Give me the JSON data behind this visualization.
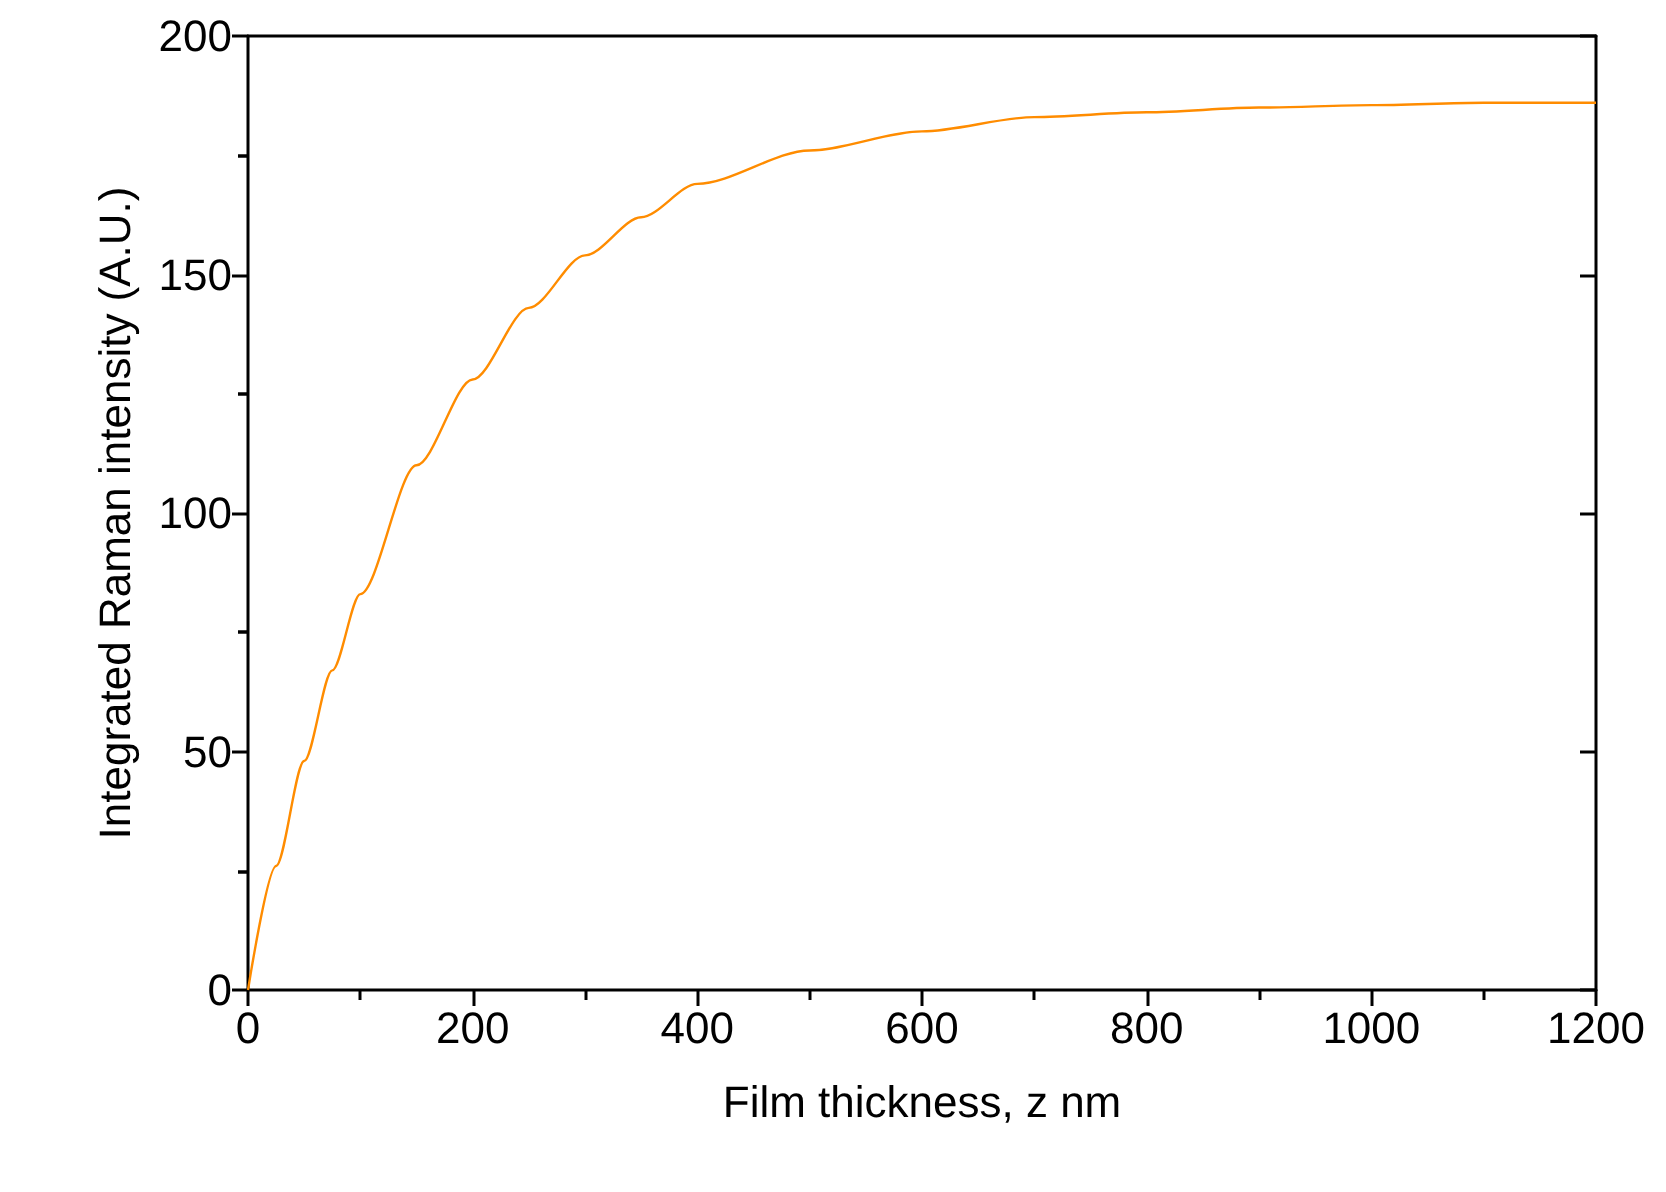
{
  "chart_data": {
    "type": "line",
    "xlabel": "Film thickness, z nm",
    "ylabel": "Integrated Raman intensity (A.U.)",
    "x": [
      0,
      25,
      50,
      75,
      100,
      150,
      200,
      250,
      300,
      350,
      400,
      500,
      600,
      700,
      800,
      900,
      1000,
      1100,
      1200
    ],
    "series": [
      {
        "color": "#ff8c00",
        "values": [
          0,
          26,
          48,
          67,
          83,
          110,
          128,
          143,
          154,
          162,
          169,
          176,
          180,
          183,
          184,
          185,
          185.5,
          186,
          186
        ]
      }
    ],
    "xlim": [
      0,
      1200
    ],
    "xticks": [
      0,
      200,
      400,
      600,
      800,
      1000,
      1200
    ],
    "ylim": [
      0,
      200
    ],
    "yticks": [
      0,
      50,
      100,
      150,
      200
    ],
    "grid": false,
    "marker": "none",
    "line_style": "solid"
  }
}
